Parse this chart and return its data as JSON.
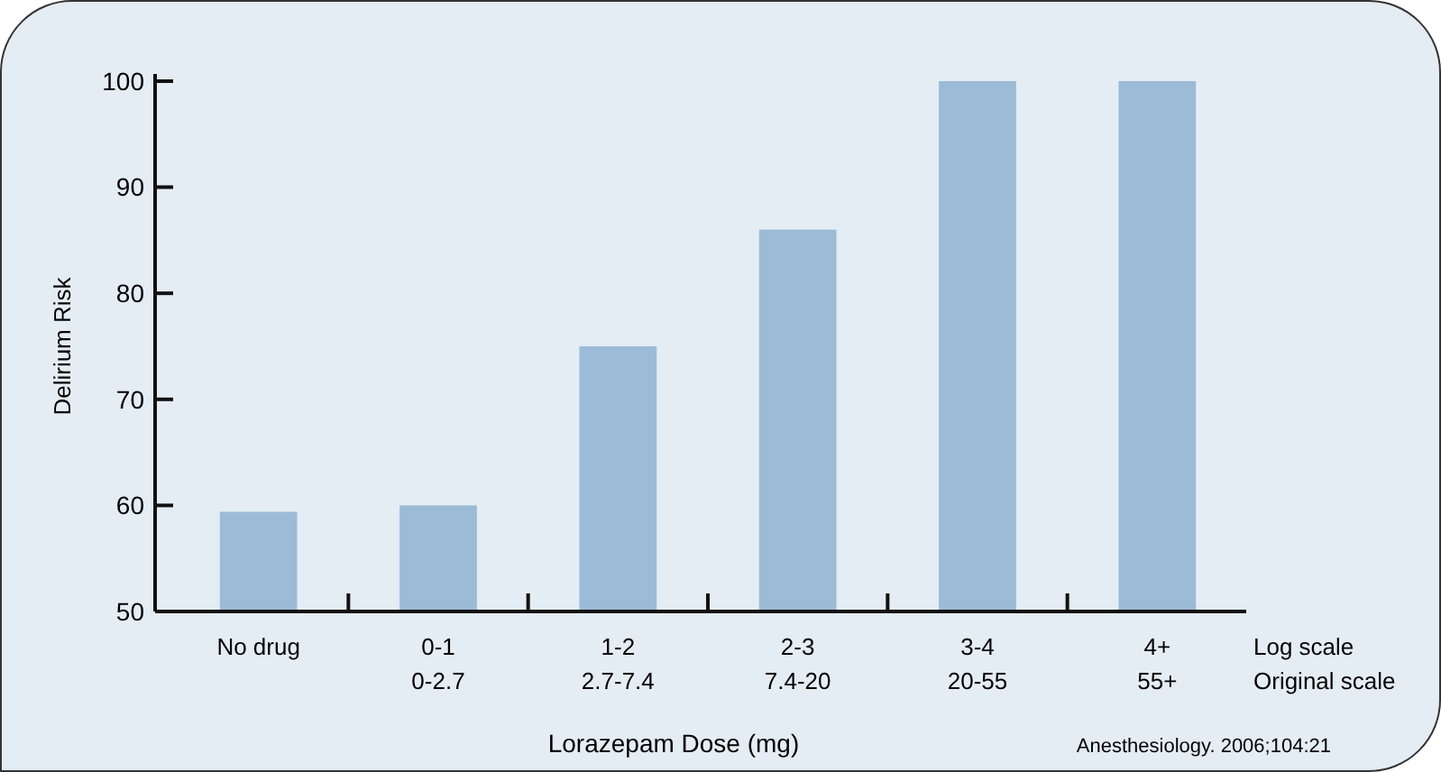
{
  "chart_data": {
    "type": "bar",
    "xlabel": "Lorazepam Dose (mg)",
    "ylabel": "Delirium Risk",
    "categories": [
      "No drug",
      "0-1\n0-2.7",
      "1-2\n2.7-7.4",
      "2-3\n7.4-20",
      "3-4\n20-55",
      "4+\n55+"
    ],
    "values": [
      59.4,
      60,
      75,
      86,
      100,
      100
    ],
    "color": "#9bbbd6",
    "ylim": [
      50,
      100
    ],
    "yticks": [
      50,
      60,
      70,
      80,
      90,
      100
    ],
    "grid": false,
    "annotations": [
      "Log scale",
      "Original scale",
      "Anesthesiology. 2006;104:21"
    ]
  }
}
